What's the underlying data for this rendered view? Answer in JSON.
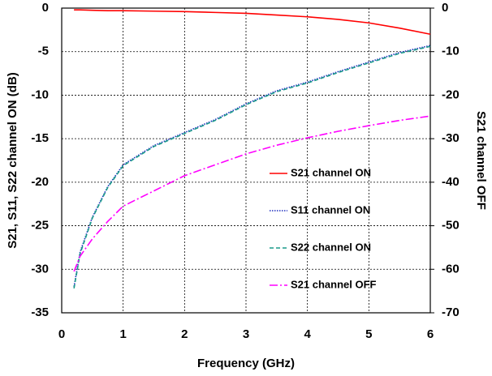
{
  "chart_data": {
    "type": "line",
    "xlabel": "Frequency (GHz)",
    "ylabel": "S21, S11, S22 channel ON (dB)",
    "y2label": "S21 channel OFF",
    "x": [
      0.2,
      0.3,
      0.5,
      0.75,
      1,
      1.5,
      2,
      2.5,
      3,
      3.5,
      4,
      4.5,
      5,
      5.5,
      6
    ],
    "series": [
      {
        "name": "S21 channel ON",
        "color": "#ff0000",
        "linestyle": "solid",
        "values": [
          -0.2,
          -0.2,
          -0.25,
          -0.3,
          -0.3,
          -0.35,
          -0.4,
          -0.5,
          -0.6,
          -0.8,
          -1.0,
          -1.3,
          -1.7,
          -2.3,
          -3.0
        ]
      },
      {
        "name": "S11 channel ON",
        "color": "#1f2fbf",
        "linestyle": "dotted",
        "values": [
          -32,
          -28,
          -24,
          -20.5,
          -18,
          -15.8,
          -14.3,
          -12.8,
          -11,
          -9.5,
          -8.5,
          -7.3,
          -6.2,
          -5.1,
          -4.3
        ]
      },
      {
        "name": "S22 channel ON",
        "color": "#1a9a8a",
        "linestyle": "dashed",
        "values": [
          -32.2,
          -28.2,
          -24.1,
          -20.6,
          -18.1,
          -15.9,
          -14.4,
          -12.9,
          -11.1,
          -9.6,
          -8.6,
          -7.4,
          -6.3,
          -5.2,
          -4.4
        ]
      },
      {
        "name": "S21 channel OFF",
        "color": "#ff00ff",
        "linestyle": "dashdot",
        "axis": "y2",
        "values": [
          -60.5,
          -57,
          -53,
          -49,
          -45.5,
          -42,
          -38.5,
          -36,
          -33.5,
          -31.5,
          -29.8,
          -28.3,
          -27,
          -25.8,
          -24.8
        ]
      }
    ],
    "xlim": [
      0,
      6
    ],
    "xticks": [
      0,
      1,
      2,
      3,
      4,
      5,
      6
    ],
    "ylim": [
      -35,
      0
    ],
    "yticks": [
      0,
      -5,
      -10,
      -15,
      -20,
      -25,
      -30,
      -35
    ],
    "y2lim": [
      -70,
      0
    ],
    "y2ticks": [
      0,
      -10,
      -20,
      -30,
      -40,
      -50,
      -60,
      -70
    ],
    "grid": true,
    "legend_loc": "center right"
  }
}
